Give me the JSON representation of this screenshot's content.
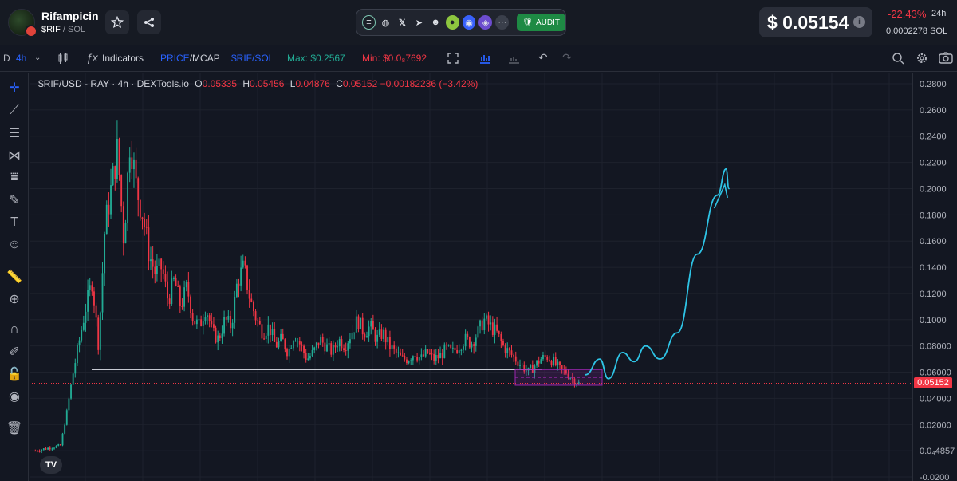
{
  "header": {
    "token_name": "Rifampicin",
    "token_symbol": "$RIF",
    "pair_sep": " / ",
    "pair_quote": "SOL",
    "audit_label": "AUDIT",
    "price": "$ 0.05154",
    "change": "-22.43%",
    "change_period": "24h",
    "price_in_sol": "0.0002278",
    "sol_unit": "SOL",
    "social_icons": [
      "solana-icon",
      "globe-icon",
      "x-icon",
      "telegram-icon",
      "reddit-icon",
      "coingecko-icon",
      "coinmarketcap-icon",
      "pump-icon",
      "more-icon"
    ]
  },
  "toolbar": {
    "d_label": "D",
    "interval": "4h",
    "indicators": "Indicators",
    "price_label": "PRICE",
    "mcap_label": "MCAP",
    "pair_label": "$RIF/SOL",
    "max_label": "Max: $0.2567",
    "min_label": "Min: $0.0₈7692"
  },
  "legend": {
    "title": "$RIF/USD - RAY · 4h · DEXTools.io",
    "o_label": "O",
    "o_value": "0.05335",
    "h_label": "H",
    "h_value": "0.05456",
    "l_label": "L",
    "l_value": "0.04876",
    "c_label": "C",
    "c_value": "0.05152",
    "change": "−0.00182236 (−3.42%)"
  },
  "chart_data": {
    "type": "candlestick",
    "series": [
      {
        "name": "$RIF/USD"
      }
    ],
    "ylim": [
      -0.02,
      0.29
    ],
    "y_ticks": [
      "0.2800",
      "0.2600",
      "0.2400",
      "0.2200",
      "0.2000",
      "0.1800",
      "0.1600",
      "0.1400",
      "0.1200",
      "0.1000",
      "0.08000",
      "0.06000",
      "0.04000",
      "0.02000",
      "0.0₄4857",
      "-0.0200"
    ],
    "y_tick_values": [
      0.28,
      0.26,
      0.24,
      0.22,
      0.2,
      0.18,
      0.16,
      0.14,
      0.12,
      0.1,
      0.08,
      0.06,
      0.04,
      0.02,
      0.0,
      -0.02
    ],
    "last_price": "0.05152",
    "last_price_value": 0.05152,
    "support_level": 0.062,
    "closes": [
      0.0,
      0.001,
      0.002,
      0.003,
      0.004,
      0.03,
      0.06,
      0.085,
      0.11,
      0.13,
      0.08,
      0.17,
      0.2,
      0.23,
      0.16,
      0.24,
      0.2,
      0.18,
      0.15,
      0.135,
      0.14,
      0.115,
      0.13,
      0.11,
      0.125,
      0.1,
      0.095,
      0.11,
      0.09,
      0.085,
      0.1,
      0.095,
      0.13,
      0.14,
      0.115,
      0.1,
      0.09,
      0.095,
      0.08,
      0.085,
      0.075,
      0.09,
      0.08,
      0.07,
      0.075,
      0.085,
      0.08,
      0.075,
      0.085,
      0.08,
      0.09,
      0.1,
      0.09,
      0.095,
      0.085,
      0.09,
      0.08,
      0.075,
      0.07,
      0.07,
      0.075,
      0.07,
      0.075,
      0.07,
      0.072,
      0.078,
      0.075,
      0.08,
      0.085,
      0.082,
      0.09,
      0.1,
      0.095,
      0.09,
      0.08,
      0.075,
      0.07,
      0.065,
      0.06,
      0.065,
      0.07,
      0.072,
      0.068,
      0.062,
      0.06,
      0.055,
      0.05152
    ],
    "projection": [
      [
        0.058,
        0
      ],
      [
        0.07,
        1
      ],
      [
        0.055,
        1.6
      ],
      [
        0.075,
        2.6
      ],
      [
        0.068,
        3.4
      ],
      [
        0.08,
        4.2
      ],
      [
        0.07,
        5.2
      ],
      [
        0.09,
        6.4
      ],
      [
        0.15,
        7.8
      ],
      [
        0.195,
        9.2
      ],
      [
        0.215,
        9.8
      ],
      [
        0.2,
        10
      ]
    ],
    "grid": true
  }
}
